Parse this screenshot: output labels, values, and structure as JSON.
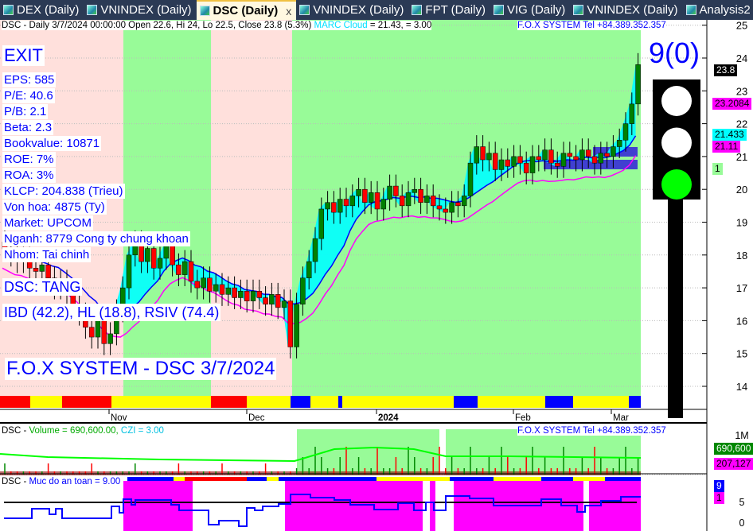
{
  "tabs": [
    {
      "label": "DEX (Daily)"
    },
    {
      "label": "VNINDEX (Daily)"
    },
    {
      "label": "DSC (Daily)",
      "active": true,
      "close": "x"
    },
    {
      "label": "VNINDEX (Daily)"
    },
    {
      "label": "FPT (Daily)"
    },
    {
      "label": "VIG (Daily)"
    },
    {
      "label": "VNINDEX (Daily)"
    },
    {
      "label": "Analysis2"
    }
  ],
  "header": {
    "symbol_line": "DSC - Daily 3/7/2024 00:00:00 Open 22.6, Hi 24, Lo 22.5, Close 23.8 (5.3%)",
    "cloud_label": "MARC Cloud",
    "cloud_value": "= 21.43,   = 3.00",
    "brand": "F.O.X SYSTEM Tel +84.389.352.357"
  },
  "signal": "EXIT",
  "fundamentals": [
    "EPS: 585",
    "P/E: 40.6",
    "P/B: 2.1",
    "Beta: 2.3",
    "Bookvalue: 10871",
    "ROE: 7%",
    "ROA: 3%",
    "KLCP: 204.838 (Trieu)",
    "Von hoa: 4875 (Ty)",
    "Market: UPCOM",
    "Nganh: 8779 Cong ty chung khoan",
    "Nhom: Tai chinh"
  ],
  "status": "DSC: TANG",
  "ratings": "IBD (42.2), HL (18.8), RSIV (74.4)",
  "watermark": "F.O.X SYSTEM - DSC 3/7/2024",
  "score": "9(0)",
  "traffic_light": {
    "top": "#ffffff",
    "middle": "#ffffff",
    "bottom": "#00ff00"
  },
  "price_tags": {
    "close": "23.8",
    "ma": "23.2084",
    "cloud": "21.433",
    "line2": "21.11",
    "count": "1"
  },
  "volume_panel": {
    "label": "DSC - ",
    "vol_label": "Volume = 690,600.00, ",
    "czi": "CZI = 3.00",
    "brand": "F.O.X SYSTEM Tel +84.389.352.357",
    "axis": "1M",
    "tag_vol": "690,600",
    "tag_avg": "207,127"
  },
  "safety_panel": {
    "label": "DSC - ",
    "title": "Muc do an toan = 9.00",
    "tag_a": "9",
    "tag_b": "1",
    "axis": [
      "5",
      "0"
    ]
  },
  "colors": {
    "up": "#008000",
    "down": "#ff0000",
    "zone_green": "#98fb98",
    "zone_pink": "#ffe0dc",
    "cloud": "#00ffff",
    "ma": "#ff00ff",
    "safety": "#0000ff"
  },
  "chart_data": {
    "type": "candlestick",
    "y_ticks": [
      "25",
      "24",
      "23",
      "22",
      "21",
      "20",
      "19",
      "18",
      "17",
      "16",
      "15",
      "14"
    ],
    "ylim": [
      13.7,
      25.2
    ],
    "x_ticks": [
      "Nov",
      "Dec",
      "2024",
      "Feb",
      "Mar"
    ],
    "close": [
      18.2,
      18.0,
      17.8,
      17.9,
      17.6,
      17.5,
      17.7,
      17.3,
      17.0,
      17.2,
      16.8,
      16.5,
      16.2,
      15.8,
      15.5,
      16.0,
      15.3,
      15.6,
      16.3,
      17.0,
      18.0,
      18.4,
      17.8,
      18.2,
      17.6,
      17.9,
      18.3,
      17.7,
      17.4,
      17.8,
      17.2,
      17.0,
      17.3,
      16.9,
      17.1,
      16.8,
      17.0,
      16.7,
      16.9,
      16.6,
      16.9,
      16.7,
      16.5,
      16.8,
      16.4,
      16.6,
      15.2,
      16.5,
      17.3,
      17.8,
      18.5,
      19.4,
      19.6,
      19.3,
      19.7,
      19.5,
      19.8,
      20.0,
      19.6,
      19.9,
      19.4,
      19.7,
      20.1,
      19.8,
      19.5,
      19.9,
      20.0,
      19.6,
      19.8,
      19.5,
      19.4,
      19.3,
      19.6,
      19.5,
      19.8,
      20.8,
      21.3,
      20.9,
      21.1,
      20.6,
      20.9,
      20.7,
      21.0,
      20.8,
      20.5,
      21.0,
      20.9,
      21.2,
      20.8,
      20.7,
      21.1,
      21.0,
      20.9,
      21.2,
      21.0,
      20.8,
      21.1,
      21.0,
      21.3,
      21.5,
      22.0,
      22.6,
      23.8
    ],
    "last": {
      "open": 22.6,
      "high": 24,
      "low": 22.5,
      "close": 23.8
    }
  }
}
